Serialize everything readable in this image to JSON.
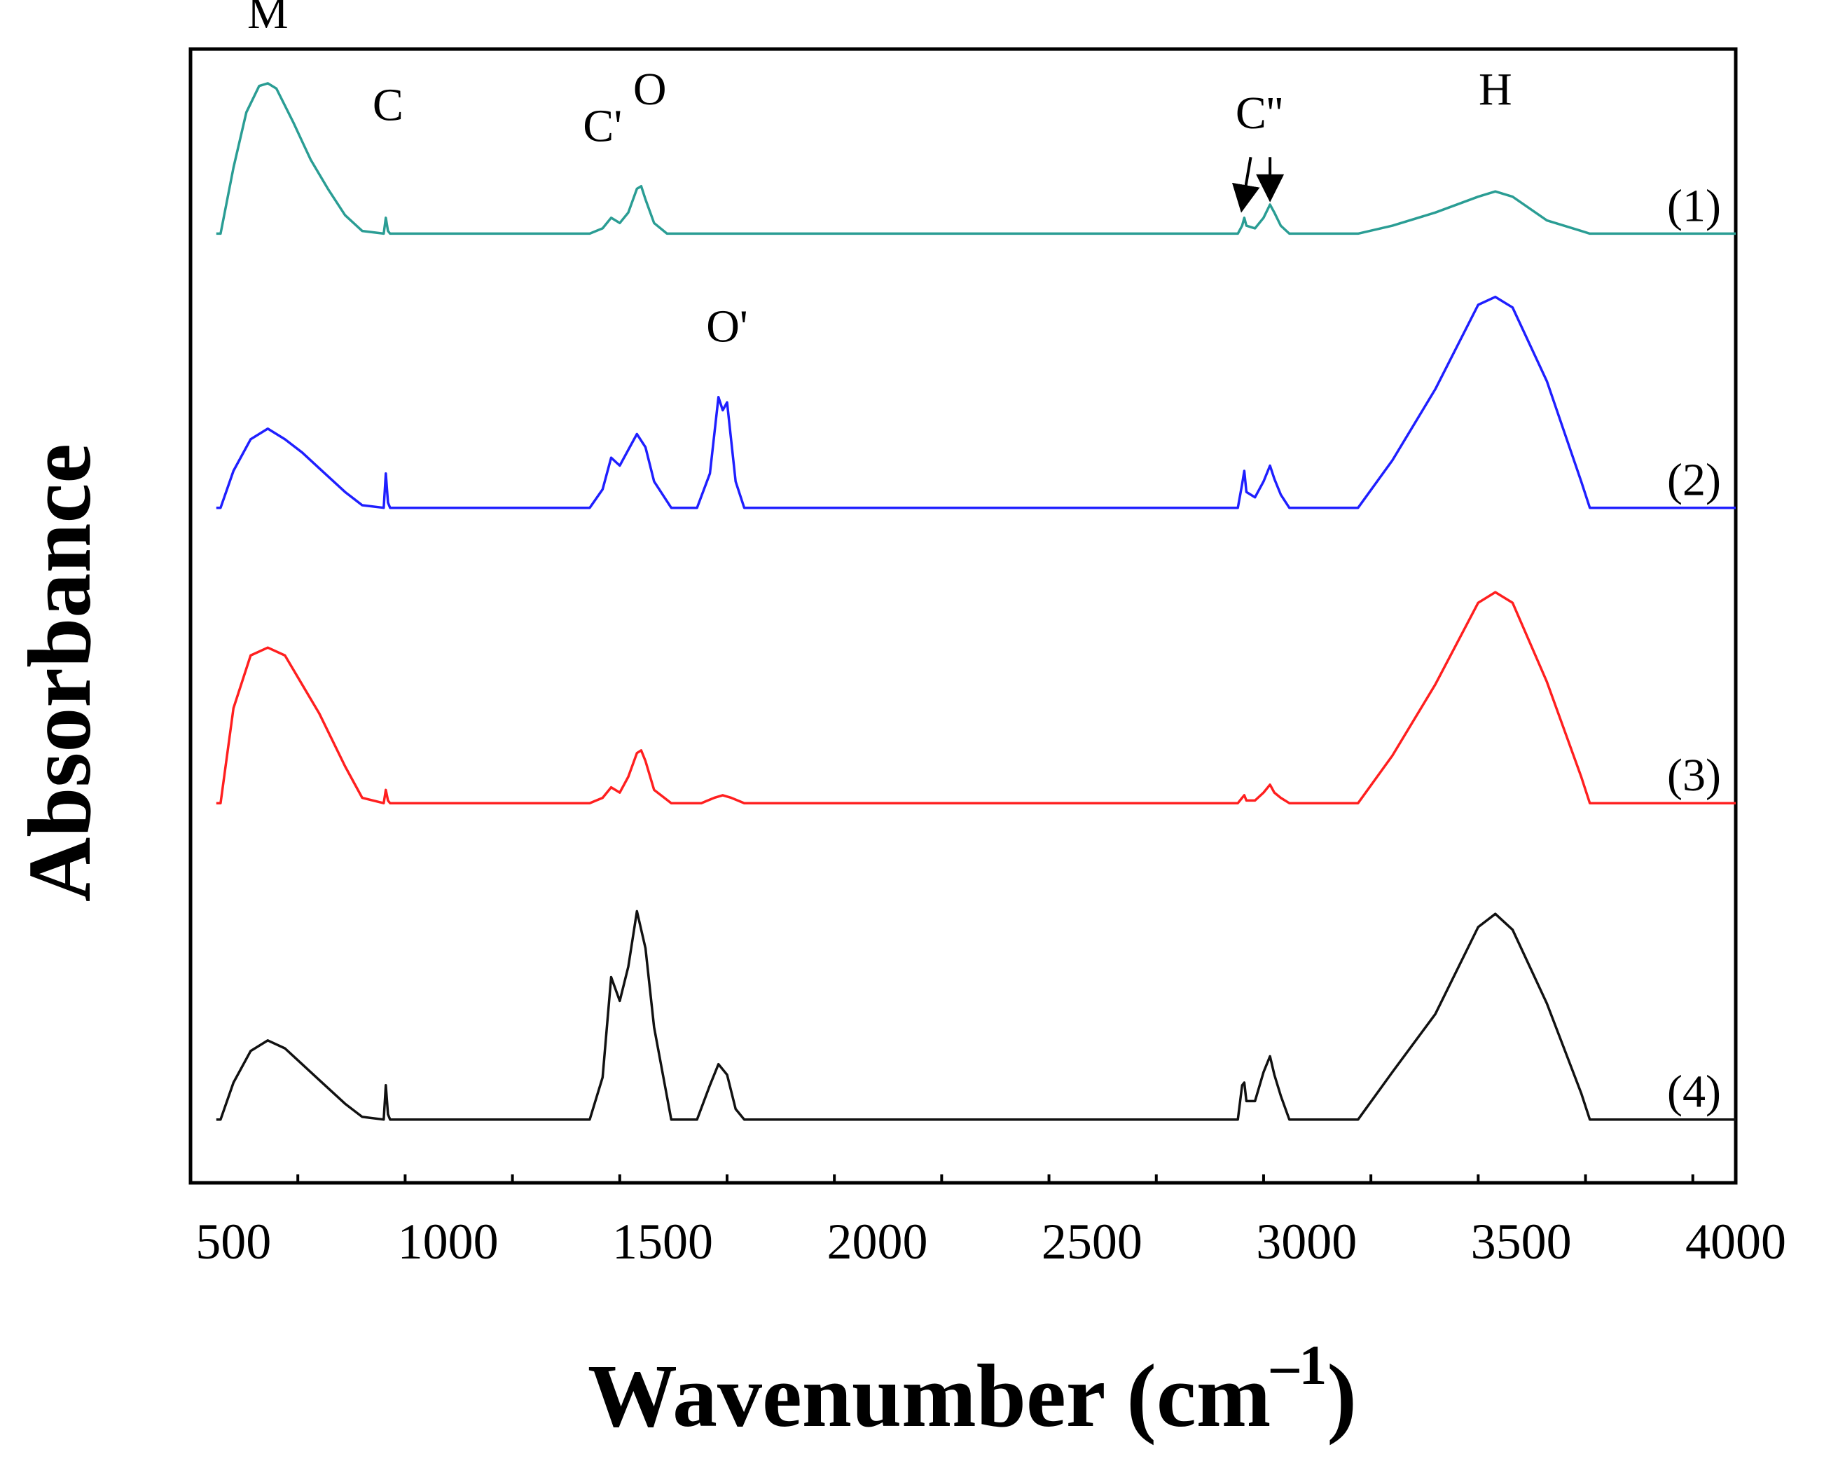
{
  "chart_data": {
    "type": "line",
    "title": "",
    "xlabel": "Wavenumber (cm",
    "xlabel_sup": "–1",
    "xlabel_close": ")",
    "ylabel": "Absorbance",
    "xlim": [
      400,
      4000
    ],
    "xticks": [
      500,
      1000,
      1500,
      2000,
      2500,
      3000,
      3500,
      4000
    ],
    "xtick_labels": [
      "500",
      "1000",
      "1500",
      "2000",
      "2500",
      "3000",
      "3500",
      "4000"
    ],
    "minor_tick_step": 250,
    "y_axis_ticks": false,
    "units": "absorbance (arbitrary, vertically offset traces)",
    "series": [
      {
        "name": "(1)",
        "color": "#2a9d94",
        "baseline": 0.2,
        "x": [
          460,
          470,
          500,
          530,
          560,
          580,
          600,
          640,
          660,
          680,
          720,
          760,
          800,
          850,
          855,
          860,
          865,
          870,
          1330,
          1360,
          1380,
          1400,
          1420,
          1440,
          1450,
          1460,
          1480,
          1510,
          2840,
          2850,
          2855,
          2860,
          2880,
          2900,
          2915,
          2925,
          2940,
          2960,
          3120,
          3200,
          3300,
          3400,
          3440,
          3480,
          3560,
          3640,
          3660,
          3670,
          4000
        ],
        "y": [
          0.2,
          0.2,
          0.45,
          0.66,
          0.76,
          0.77,
          0.75,
          0.62,
          0.55,
          0.48,
          0.37,
          0.27,
          0.21,
          0.2,
          0.26,
          0.21,
          0.2,
          0.2,
          0.2,
          0.22,
          0.26,
          0.24,
          0.28,
          0.37,
          0.38,
          0.33,
          0.24,
          0.2,
          0.2,
          0.23,
          0.26,
          0.23,
          0.22,
          0.26,
          0.31,
          0.28,
          0.23,
          0.2,
          0.2,
          0.23,
          0.28,
          0.34,
          0.36,
          0.34,
          0.25,
          0.21,
          0.2,
          0.2,
          0.2
        ]
      },
      {
        "name": "(2)",
        "color": "#1f1fff",
        "baseline": -0.84,
        "x": [
          460,
          470,
          500,
          540,
          580,
          620,
          660,
          700,
          760,
          800,
          850,
          855,
          860,
          865,
          870,
          1330,
          1360,
          1380,
          1400,
          1420,
          1440,
          1460,
          1480,
          1520,
          1580,
          1610,
          1630,
          1640,
          1650,
          1670,
          1690,
          2840,
          2850,
          2855,
          2860,
          2880,
          2900,
          2915,
          2925,
          2940,
          2960,
          3120,
          3200,
          3300,
          3400,
          3440,
          3480,
          3560,
          3640,
          3660,
          3670,
          4000
        ],
        "y": [
          0.2,
          0.2,
          0.34,
          0.46,
          0.5,
          0.46,
          0.41,
          0.35,
          0.26,
          0.21,
          0.2,
          0.33,
          0.22,
          0.2,
          0.2,
          0.2,
          0.27,
          0.39,
          0.36,
          0.42,
          0.48,
          0.43,
          0.3,
          0.2,
          0.2,
          0.33,
          0.62,
          0.57,
          0.6,
          0.3,
          0.2,
          0.2,
          0.29,
          0.34,
          0.26,
          0.24,
          0.3,
          0.36,
          0.31,
          0.25,
          0.2,
          0.2,
          0.38,
          0.65,
          0.97,
          1.0,
          0.96,
          0.68,
          0.3,
          0.2,
          0.2,
          0.2
        ]
      },
      {
        "name": "(3)",
        "color": "#ff1f1f",
        "baseline": -1.96,
        "x": [
          460,
          470,
          500,
          540,
          580,
          620,
          660,
          700,
          760,
          800,
          850,
          855,
          860,
          865,
          870,
          1330,
          1360,
          1380,
          1400,
          1420,
          1440,
          1450,
          1460,
          1480,
          1520,
          1590,
          1620,
          1640,
          1660,
          1690,
          2840,
          2850,
          2855,
          2860,
          2880,
          2900,
          2915,
          2925,
          2940,
          2960,
          3120,
          3200,
          3300,
          3400,
          3440,
          3480,
          3560,
          3640,
          3660,
          3670,
          4000
        ],
        "y": [
          0.2,
          0.2,
          0.56,
          0.76,
          0.79,
          0.76,
          0.65,
          0.54,
          0.34,
          0.22,
          0.2,
          0.25,
          0.21,
          0.2,
          0.2,
          0.2,
          0.22,
          0.26,
          0.24,
          0.3,
          0.39,
          0.4,
          0.36,
          0.25,
          0.2,
          0.2,
          0.22,
          0.23,
          0.22,
          0.2,
          0.2,
          0.22,
          0.23,
          0.21,
          0.21,
          0.24,
          0.27,
          0.24,
          0.22,
          0.2,
          0.2,
          0.38,
          0.65,
          0.96,
          1.0,
          0.96,
          0.66,
          0.3,
          0.2,
          0.2,
          0.2
        ]
      },
      {
        "name": "(4)",
        "color": "#111111",
        "baseline": -3.16,
        "x": [
          460,
          470,
          500,
          540,
          580,
          620,
          660,
          700,
          760,
          800,
          850,
          855,
          860,
          865,
          870,
          1330,
          1360,
          1380,
          1400,
          1420,
          1440,
          1460,
          1480,
          1520,
          1580,
          1610,
          1630,
          1640,
          1650,
          1670,
          1690,
          2840,
          2850,
          2855,
          2860,
          2880,
          2900,
          2915,
          2925,
          2940,
          2960,
          3120,
          3200,
          3300,
          3400,
          3440,
          3480,
          3560,
          3640,
          3660,
          3670,
          4000
        ],
        "y": [
          0.2,
          0.2,
          0.34,
          0.46,
          0.5,
          0.47,
          0.41,
          0.35,
          0.26,
          0.21,
          0.2,
          0.33,
          0.22,
          0.2,
          0.2,
          0.2,
          0.36,
          0.74,
          0.65,
          0.78,
          0.99,
          0.85,
          0.55,
          0.2,
          0.2,
          0.33,
          0.41,
          0.39,
          0.37,
          0.24,
          0.2,
          0.2,
          0.33,
          0.34,
          0.27,
          0.27,
          0.38,
          0.44,
          0.37,
          0.29,
          0.2,
          0.2,
          0.38,
          0.6,
          0.93,
          0.98,
          0.92,
          0.64,
          0.3,
          0.2,
          0.2,
          0.2
        ]
      }
    ],
    "annotations": [
      {
        "text": "M",
        "x": 580,
        "series": 0,
        "level": 0.98
      },
      {
        "text": "C",
        "x": 860,
        "series": 0,
        "level": 0.63
      },
      {
        "text": "C'",
        "x": 1360,
        "series": 0,
        "level": 0.55
      },
      {
        "text": "O",
        "x": 1470,
        "series": 0,
        "level": 0.69
      },
      {
        "text": "C''",
        "x": 2890,
        "series": 0,
        "level": 0.6
      },
      {
        "text": "H",
        "x": 3440,
        "series": 0,
        "level": 0.69
      },
      {
        "text": "O'",
        "x": 1650,
        "series": 1,
        "level": 0.83
      }
    ],
    "arrows": [
      {
        "series": 0,
        "from_x": 2870,
        "to_x": 2850,
        "from_level": 0.49,
        "to_level": 0.3
      },
      {
        "series": 0,
        "from_x": 2915,
        "to_x": 2915,
        "from_level": 0.49,
        "to_level": 0.34
      }
    ]
  }
}
